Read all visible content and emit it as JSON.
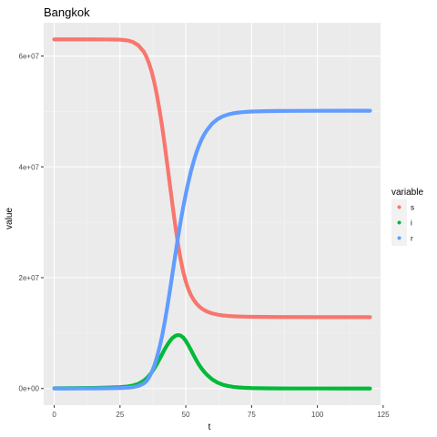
{
  "chart_data": {
    "type": "line",
    "title": "Bangkok",
    "xlabel": "t",
    "ylabel": "value",
    "xlim": [
      -4,
      124
    ],
    "ylim": [
      -3000000,
      66000000
    ],
    "x_ticks": [
      0,
      25,
      50,
      75,
      100,
      125
    ],
    "x_tick_labels": [
      "0",
      "25",
      "50",
      "75",
      "100",
      "125"
    ],
    "y_ticks": [
      0,
      20000000,
      40000000,
      60000000
    ],
    "y_tick_labels": [
      "0e+00",
      "2e+07",
      "4e+07",
      "6e+07"
    ],
    "grid": true,
    "legend": {
      "title": "variable",
      "position": "right"
    },
    "x": [
      0,
      5,
      10,
      15,
      20,
      25,
      28,
      30,
      32,
      34,
      35,
      36,
      37,
      38,
      39,
      40,
      41,
      42,
      43,
      44,
      45,
      46,
      47,
      48,
      49,
      50,
      51,
      52,
      53,
      54,
      55,
      56,
      57,
      58,
      60,
      62,
      64,
      66,
      68,
      70,
      72,
      75,
      80,
      85,
      90,
      100,
      110,
      120
    ],
    "series": [
      {
        "name": "s",
        "color": "#F8766D",
        "values": [
          63000000,
          63000000,
          63000000,
          63000000,
          62990000,
          62950000,
          62800000,
          62500000,
          61900000,
          60800000,
          59900000,
          58700000,
          57200000,
          55300000,
          53000000,
          50300000,
          47300000,
          43900000,
          40300000,
          36600000,
          32900000,
          29400000,
          26200000,
          23400000,
          21100000,
          19300000,
          17900000,
          16800000,
          16000000,
          15350000,
          14850000,
          14450000,
          14150000,
          13900000,
          13550000,
          13330000,
          13190000,
          13100000,
          13040000,
          13000000,
          12970000,
          12940000,
          12910000,
          12900000,
          12890000,
          12880000,
          12875000,
          12870000
        ]
      },
      {
        "name": "i",
        "color": "#00BA38",
        "values": [
          50000,
          60000,
          80000,
          110000,
          160000,
          250000,
          380000,
          550000,
          850000,
          1400000,
          1800000,
          2300000,
          2900000,
          3600000,
          4400000,
          5300000,
          6200000,
          7100000,
          7900000,
          8600000,
          9150000,
          9500000,
          9650000,
          9550000,
          9200000,
          8600000,
          7800000,
          6900000,
          6000000,
          5100000,
          4300000,
          3600000,
          3000000,
          2500000,
          1650000,
          1080000,
          700000,
          460000,
          300000,
          200000,
          140000,
          80000,
          40000,
          20000,
          12000,
          5000,
          2000,
          1000
        ]
      },
      {
        "name": "r",
        "color": "#619CFF",
        "values": [
          0,
          0,
          10000,
          20000,
          40000,
          80000,
          150000,
          250000,
          450000,
          900000,
          1300000,
          2000000,
          2900000,
          4100000,
          5600000,
          7400000,
          9500000,
          12000000,
          14800000,
          17800000,
          20950000,
          24100000,
          27150000,
          30050000,
          32700000,
          35100000,
          37300000,
          39300000,
          41000000,
          42550000,
          43850000,
          44950000,
          45850000,
          46600000,
          47800000,
          48590000,
          49110000,
          49440000,
          49660000,
          49800000,
          49890000,
          49980000,
          50050000,
          50080000,
          50098000,
          50115000,
          50123000,
          50129000
        ]
      }
    ]
  }
}
